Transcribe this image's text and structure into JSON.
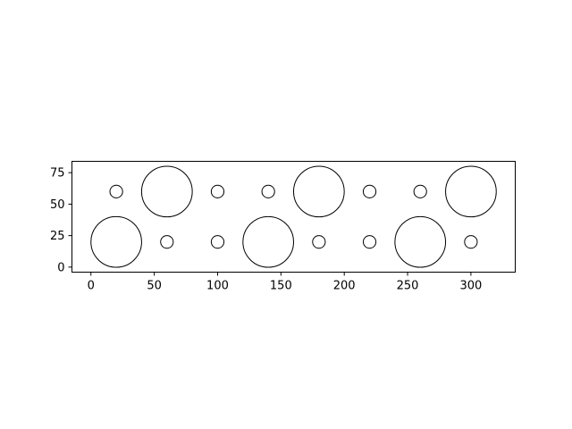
{
  "chart_data": {
    "type": "scatter",
    "title": "",
    "xlabel": "",
    "ylabel": "",
    "xlim": [
      -15,
      335
    ],
    "ylim": [
      -4,
      84
    ],
    "aspect": "equal",
    "grid": false,
    "legend": null,
    "x_ticks": [
      0,
      50,
      100,
      150,
      200,
      250,
      300
    ],
    "y_ticks": [
      0,
      25,
      50,
      75
    ],
    "x_tick_labels": [
      "0",
      "50",
      "100",
      "150",
      "200",
      "250",
      "300"
    ],
    "y_tick_labels": [
      "0",
      "25",
      "50",
      "75"
    ],
    "circles": [
      {
        "x": 20,
        "y": 20,
        "r": 20
      },
      {
        "x": 60,
        "y": 20,
        "r": 5
      },
      {
        "x": 100,
        "y": 20,
        "r": 5
      },
      {
        "x": 140,
        "y": 20,
        "r": 20
      },
      {
        "x": 180,
        "y": 20,
        "r": 5
      },
      {
        "x": 220,
        "y": 20,
        "r": 5
      },
      {
        "x": 260,
        "y": 20,
        "r": 20
      },
      {
        "x": 300,
        "y": 20,
        "r": 5
      },
      {
        "x": 20,
        "y": 60,
        "r": 5
      },
      {
        "x": 60,
        "y": 60,
        "r": 20
      },
      {
        "x": 100,
        "y": 60,
        "r": 5
      },
      {
        "x": 140,
        "y": 60,
        "r": 5
      },
      {
        "x": 180,
        "y": 60,
        "r": 20
      },
      {
        "x": 220,
        "y": 60,
        "r": 5
      },
      {
        "x": 260,
        "y": 60,
        "r": 5
      },
      {
        "x": 300,
        "y": 60,
        "r": 20
      }
    ],
    "colors": {
      "edge": "#000000",
      "face": "none",
      "axes": "#000000",
      "background": "#ffffff"
    }
  }
}
